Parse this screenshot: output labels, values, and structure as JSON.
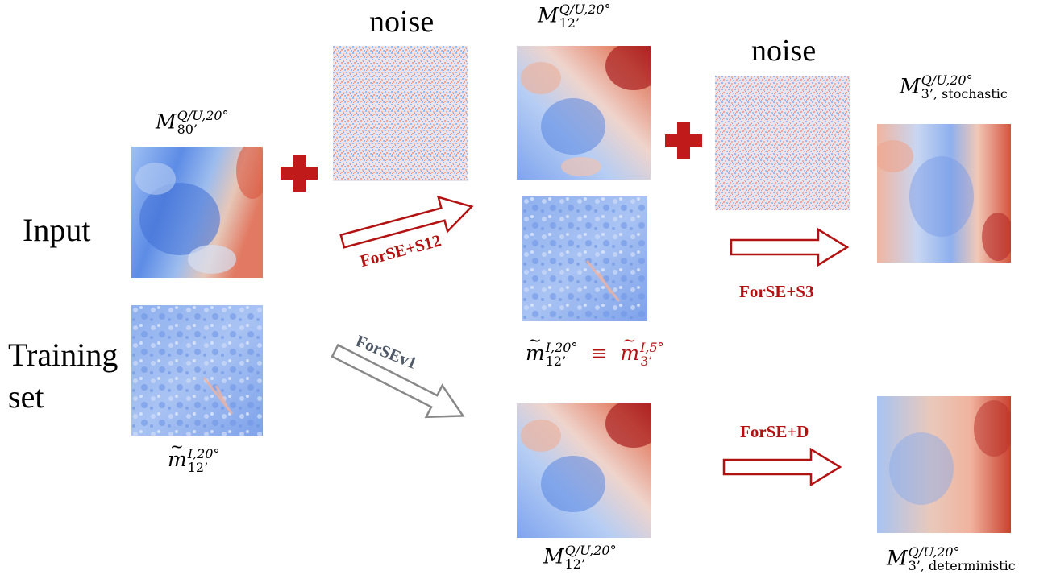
{
  "rows": {
    "input": "Input",
    "training_line1": "Training",
    "training_line2": "set"
  },
  "noise_label": "noise",
  "labels": {
    "m80": {
      "base": "M",
      "sup": "Q/U,20°",
      "sub": "80’"
    },
    "m12_top": {
      "base": "M",
      "sup": "Q/U,20°",
      "sub": "12’"
    },
    "m12_bottom": {
      "base": "M",
      "sup": "Q/U,20°",
      "sub": "12’"
    },
    "m3_stochastic": {
      "base": "M",
      "sup": "Q/U,20°",
      "sub": "3’, stochastic"
    },
    "m3_deterministic": {
      "base": "M",
      "sup": "Q/U,20°",
      "sub": "3’, deterministic"
    },
    "training_small": {
      "base": "m",
      "sup": "I,20°",
      "sub": "12’"
    },
    "equiv_left": {
      "base": "m",
      "sup": "I,20°",
      "sub": "12’"
    },
    "equiv_symbol": "≡",
    "equiv_right": {
      "base": "m",
      "sup": "I,5°",
      "sub": "3’"
    }
  },
  "arrows": {
    "forse_s12": "ForSE+S12",
    "forsev1": "ForSEv1",
    "forse_s3": "ForSE+S3",
    "forse_d": "ForSE+D"
  },
  "colors": {
    "accent_red": "#b31212",
    "arrow_gray": "#888888",
    "forsev1_text": "#4e5866",
    "blue": "#3b6fd8",
    "red": "#c0282d"
  }
}
